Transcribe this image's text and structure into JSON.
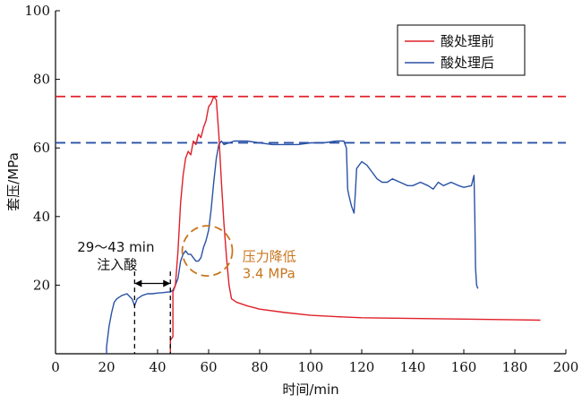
{
  "chart_data": {
    "type": "line",
    "xlabel": "时间/min",
    "ylabel": "套压/MPa",
    "xlim": [
      0,
      200
    ],
    "ylim": [
      0,
      100
    ],
    "xticks": [
      "0",
      "20",
      "40",
      "60",
      "80",
      "100",
      "120",
      "140",
      "160",
      "180",
      "200"
    ],
    "yticks": [
      "20",
      "40",
      "60",
      "80",
      "100"
    ],
    "legend_position": "top-right",
    "grid": false,
    "series": [
      {
        "name": "酸处理前",
        "color": "#e0202a",
        "points": [
          [
            45,
            0
          ],
          [
            45,
            4
          ],
          [
            46,
            5
          ],
          [
            46,
            18
          ],
          [
            47,
            20
          ],
          [
            48,
            30
          ],
          [
            49,
            44
          ],
          [
            50,
            52
          ],
          [
            51,
            57
          ],
          [
            52,
            59
          ],
          [
            53,
            58
          ],
          [
            54,
            62
          ],
          [
            55,
            61
          ],
          [
            56,
            64
          ],
          [
            57,
            63
          ],
          [
            58,
            66
          ],
          [
            59,
            68
          ],
          [
            60,
            72
          ],
          [
            61,
            73
          ],
          [
            62,
            75
          ],
          [
            63,
            74
          ],
          [
            64,
            64
          ],
          [
            65,
            50
          ],
          [
            66,
            38
          ],
          [
            67,
            28
          ],
          [
            68,
            20
          ],
          [
            69,
            16
          ],
          [
            71,
            15
          ],
          [
            75,
            14
          ],
          [
            80,
            13
          ],
          [
            90,
            12
          ],
          [
            100,
            11.2
          ],
          [
            110,
            10.8
          ],
          [
            120,
            10.5
          ],
          [
            130,
            10.4
          ],
          [
            140,
            10.3
          ],
          [
            150,
            10.2
          ],
          [
            160,
            10.1
          ],
          [
            170,
            10
          ],
          [
            180,
            9.9
          ],
          [
            190,
            9.8
          ]
        ]
      },
      {
        "name": "酸处理后",
        "color": "#2a52a6",
        "points": [
          [
            20,
            0
          ],
          [
            20,
            2
          ],
          [
            21,
            8
          ],
          [
            22,
            12
          ],
          [
            23,
            15
          ],
          [
            24,
            16
          ],
          [
            26,
            17
          ],
          [
            28,
            17.5
          ],
          [
            30,
            16
          ],
          [
            31,
            14
          ],
          [
            32,
            16
          ],
          [
            34,
            17
          ],
          [
            36,
            17.5
          ],
          [
            38,
            17.5
          ],
          [
            40,
            17.7
          ],
          [
            42,
            17.8
          ],
          [
            44,
            18
          ],
          [
            45,
            18
          ],
          [
            46,
            18.5
          ],
          [
            47,
            20
          ],
          [
            48,
            22
          ],
          [
            49,
            27
          ],
          [
            50,
            29
          ],
          [
            51,
            30
          ],
          [
            52,
            29
          ],
          [
            53,
            29
          ],
          [
            54,
            28
          ],
          [
            55,
            27
          ],
          [
            56,
            27
          ],
          [
            57,
            28
          ],
          [
            58,
            31
          ],
          [
            59,
            33
          ],
          [
            60,
            36
          ],
          [
            61,
            42
          ],
          [
            62,
            50
          ],
          [
            63,
            57
          ],
          [
            64,
            61
          ],
          [
            65,
            62
          ],
          [
            66,
            61
          ],
          [
            68,
            61.5
          ],
          [
            70,
            62
          ],
          [
            75,
            62
          ],
          [
            80,
            61.5
          ],
          [
            85,
            61
          ],
          [
            90,
            61
          ],
          [
            95,
            61
          ],
          [
            100,
            61.5
          ],
          [
            105,
            61.5
          ],
          [
            110,
            62
          ],
          [
            113,
            62
          ],
          [
            114,
            60
          ],
          [
            114.5,
            48
          ],
          [
            115,
            46
          ],
          [
            116,
            43
          ],
          [
            117,
            41
          ],
          [
            117.5,
            47
          ],
          [
            118,
            54
          ],
          [
            120,
            56
          ],
          [
            122,
            55
          ],
          [
            124,
            53
          ],
          [
            126,
            51
          ],
          [
            128,
            50
          ],
          [
            130,
            50
          ],
          [
            132,
            51
          ],
          [
            135,
            50
          ],
          [
            138,
            49
          ],
          [
            140,
            49
          ],
          [
            143,
            50
          ],
          [
            146,
            49
          ],
          [
            148,
            48
          ],
          [
            150,
            50
          ],
          [
            152,
            49
          ],
          [
            155,
            50
          ],
          [
            158,
            49
          ],
          [
            160,
            48.5
          ],
          [
            163,
            49
          ],
          [
            164,
            52
          ],
          [
            164.3,
            40
          ],
          [
            164.6,
            25
          ],
          [
            165,
            20
          ],
          [
            165.5,
            19
          ]
        ]
      }
    ],
    "reference_lines": [
      {
        "y": 75,
        "color": "#e0202a"
      },
      {
        "y": 61.5,
        "color": "#2a52a6"
      }
    ],
    "annotations": {
      "acid_injection": {
        "line1": "29～43 min",
        "line2": "注入酸",
        "x_start": 31,
        "x_end": 45,
        "arrow_y": 20.5,
        "text_x": 8.5,
        "line1_y": 29.7,
        "line2_y": 24.7
      },
      "pressure_drop": {
        "line1": "压力降低",
        "line2": "3.4 MPa",
        "color": "#c8761e",
        "circle_center": [
          59.5,
          30
        ],
        "text_x": 75,
        "line1_y": 27,
        "line2_y": 22
      }
    }
  }
}
